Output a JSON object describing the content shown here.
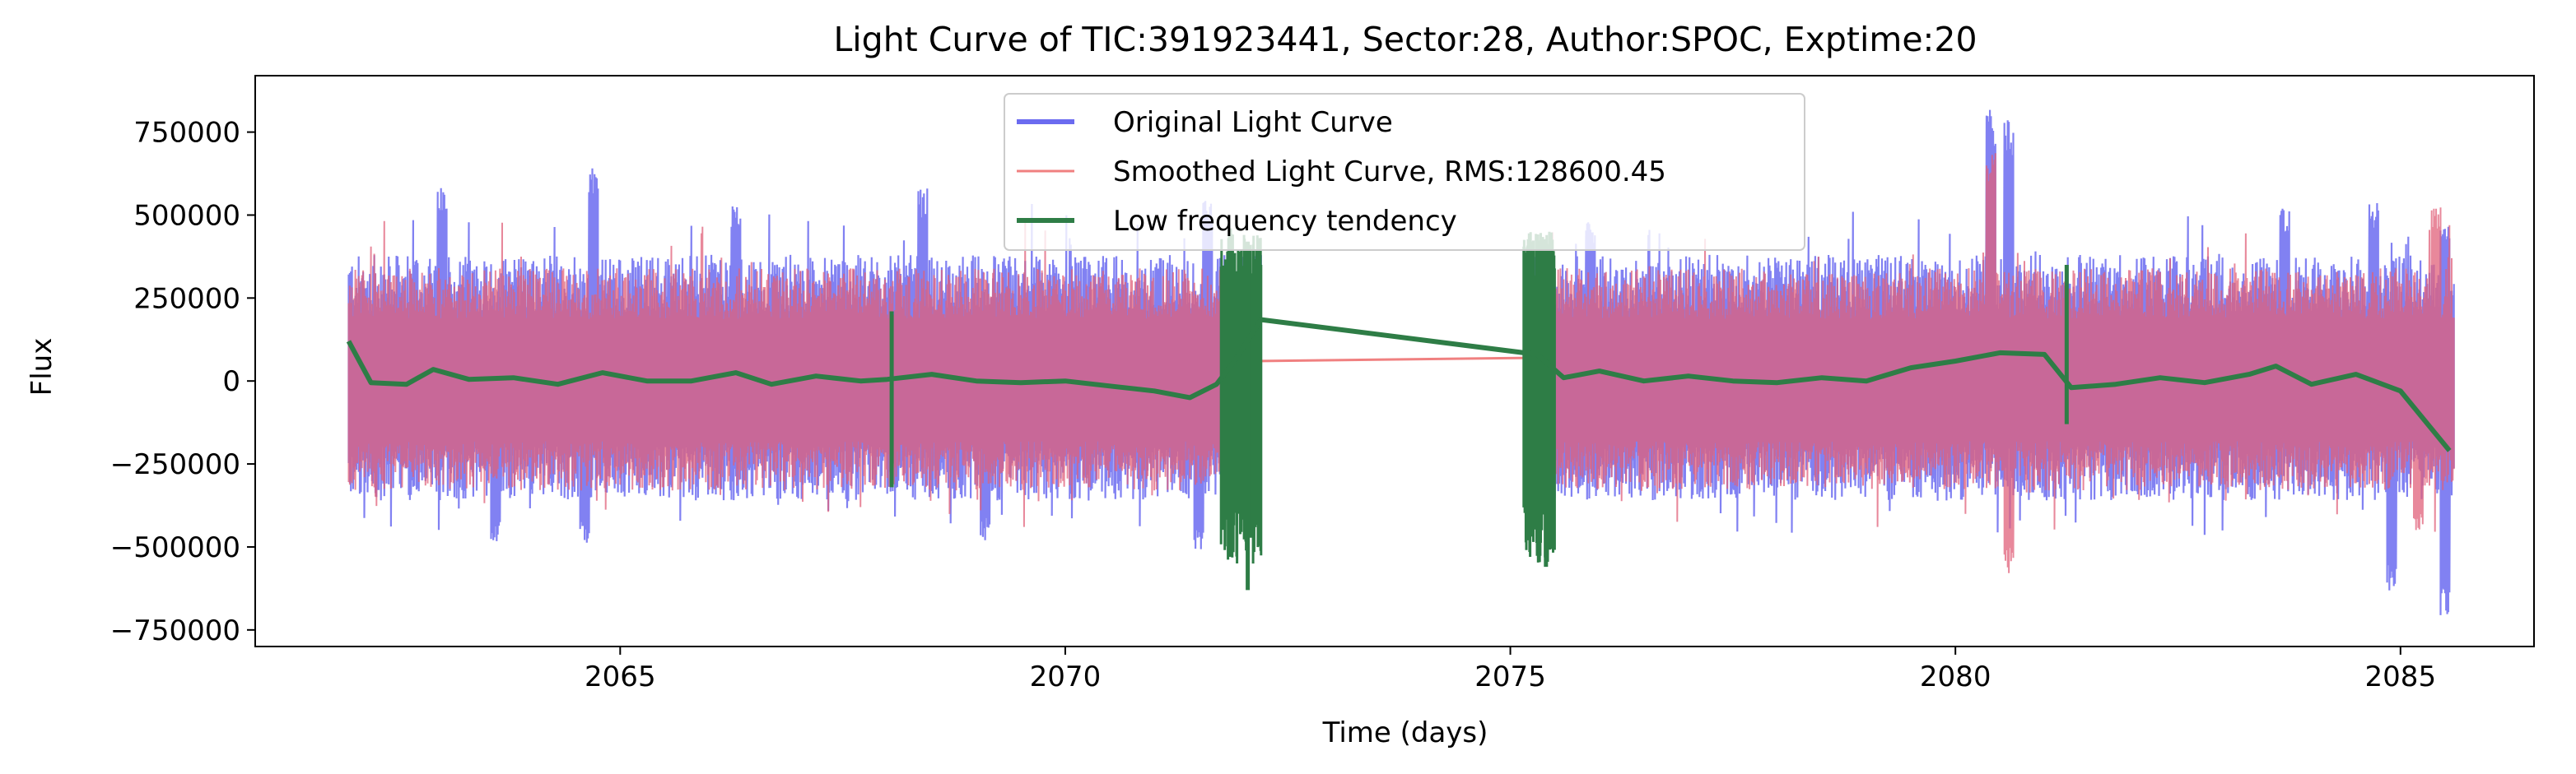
{
  "chart_data": {
    "type": "line",
    "title": "Light Curve of TIC:391923441, Sector:28, Author:SPOC, Exptime:20",
    "xlabel": "Time (days)",
    "ylabel": "Flux",
    "xlim": [
      2060.9,
      2086.5
    ],
    "ylim": [
      -800000,
      920000
    ],
    "xticks": [
      2065,
      2070,
      2075,
      2080,
      2085
    ],
    "xtick_labels": [
      "2065",
      "2070",
      "2075",
      "2080",
      "2085"
    ],
    "yticks": [
      -750000,
      -500000,
      -250000,
      0,
      250000,
      500000,
      750000
    ],
    "ytick_labels": [
      "−750000",
      "−500000",
      "−250000",
      "0",
      "250000",
      "500000",
      "750000"
    ],
    "legend_position": "top-center",
    "data_gap": [
      2072.2,
      2075.2
    ],
    "series": [
      {
        "name": "Original Light Curve",
        "color": "#6b6bf0",
        "envelope": {
          "upper_typical": 380000,
          "lower_typical": -360000,
          "peaks": [
            [
              2063.0,
              600000
            ],
            [
              2064.7,
              660000
            ],
            [
              2066.3,
              540000
            ],
            [
              2068.4,
              580000
            ],
            [
              2071.6,
              560000
            ],
            [
              2075.9,
              480000
            ],
            [
              2080.4,
              830000
            ],
            [
              2080.6,
              790000
            ],
            [
              2083.7,
              520000
            ],
            [
              2084.7,
              540000
            ],
            [
              2085.5,
              480000
            ]
          ],
          "troughs": [
            [
              2063.6,
              -490000
            ],
            [
              2064.6,
              -490000
            ],
            [
              2069.1,
              -480000
            ],
            [
              2071.5,
              -520000
            ],
            [
              2084.9,
              -650000
            ],
            [
              2085.5,
              -720000
            ]
          ]
        }
      },
      {
        "name": "Smoothed Light Curve, RMS:128600.45",
        "color": "#f08080",
        "envelope": {
          "upper_typical": 340000,
          "lower_typical": -330000,
          "peaks": [
            [
              2080.4,
              700000
            ],
            [
              2085.4,
              540000
            ]
          ],
          "troughs": [
            [
              2080.6,
              -580000
            ],
            [
              2085.2,
              -450000
            ]
          ]
        },
        "gap_bridge": [
          [
            2072.1,
            60000
          ],
          [
            2075.3,
            70000
          ]
        ]
      },
      {
        "name": "Low frequency tendency",
        "color": "#2e7d46",
        "points": [
          [
            2061.95,
            120000
          ],
          [
            2062.2,
            -5000
          ],
          [
            2062.6,
            -10000
          ],
          [
            2062.9,
            35000
          ],
          [
            2063.3,
            5000
          ],
          [
            2063.8,
            10000
          ],
          [
            2064.3,
            -10000
          ],
          [
            2064.8,
            25000
          ],
          [
            2065.3,
            0
          ],
          [
            2065.8,
            0
          ],
          [
            2066.3,
            25000
          ],
          [
            2066.7,
            -10000
          ],
          [
            2067.2,
            15000
          ],
          [
            2067.7,
            0
          ],
          [
            2068.0,
            5000
          ],
          [
            2068.5,
            20000
          ],
          [
            2069.0,
            0
          ],
          [
            2069.5,
            -5000
          ],
          [
            2070.0,
            0
          ],
          [
            2070.5,
            -15000
          ],
          [
            2071.0,
            -30000
          ],
          [
            2071.4,
            -50000
          ],
          [
            2071.7,
            -10000
          ],
          [
            2071.9,
            60000
          ],
          [
            2072.2,
            185000
          ],
          [
            2075.3,
            80000
          ],
          [
            2075.6,
            10000
          ],
          [
            2076.0,
            30000
          ],
          [
            2076.5,
            0
          ],
          [
            2077.0,
            15000
          ],
          [
            2077.5,
            0
          ],
          [
            2078.0,
            -5000
          ],
          [
            2078.5,
            10000
          ],
          [
            2079.0,
            0
          ],
          [
            2079.5,
            40000
          ],
          [
            2080.0,
            60000
          ],
          [
            2080.5,
            85000
          ],
          [
            2081.0,
            80000
          ],
          [
            2081.3,
            -20000
          ],
          [
            2081.8,
            -10000
          ],
          [
            2082.3,
            10000
          ],
          [
            2082.8,
            -5000
          ],
          [
            2083.3,
            20000
          ],
          [
            2083.6,
            45000
          ],
          [
            2084.0,
            -10000
          ],
          [
            2084.5,
            20000
          ],
          [
            2085.0,
            -30000
          ],
          [
            2085.55,
            -210000
          ]
        ],
        "spikes": [
          [
            2068.05,
            -320000,
            210000
          ],
          [
            2071.85,
            -530000,
            460000
          ],
          [
            2072.05,
            -630000,
            420000
          ],
          [
            2075.2,
            -480000,
            290000
          ],
          [
            2075.4,
            -560000,
            340000
          ],
          [
            2081.25,
            -130000,
            350000
          ]
        ]
      }
    ]
  }
}
